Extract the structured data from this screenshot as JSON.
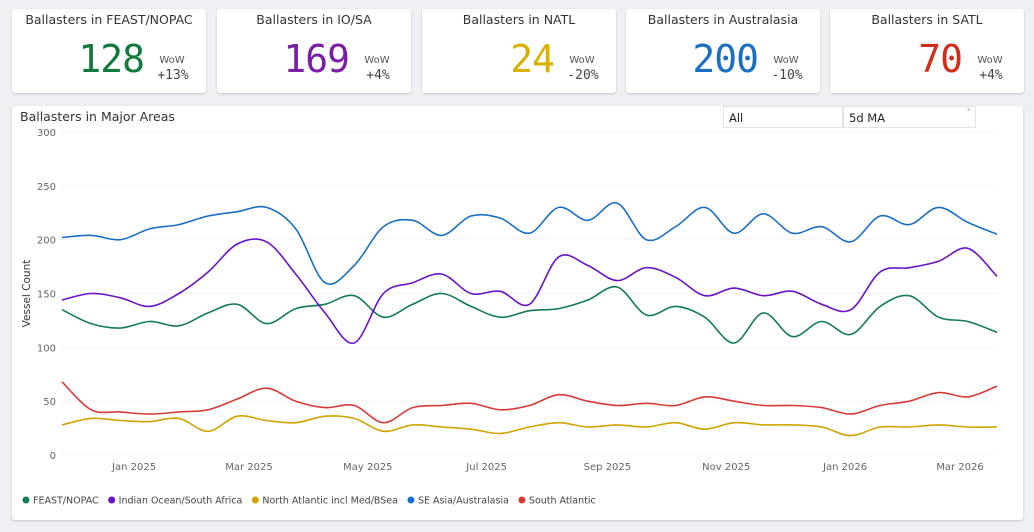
{
  "kpis": [
    {
      "title": "Ballasters in FEAST/NOPAC",
      "value": "128",
      "wow_label": "WoW",
      "delta": "+13%",
      "color": "#137a3e"
    },
    {
      "title": "Ballasters in IO/SA",
      "value": "169",
      "wow_label": "WoW",
      "delta": "+4%",
      "color": "#7a1fa5"
    },
    {
      "title": "Ballasters in NATL",
      "value": "24",
      "wow_label": "WoW",
      "delta": "-20%",
      "color": "#d8b000"
    },
    {
      "title": "Ballasters in Australasia",
      "value": "200",
      "wow_label": "WoW",
      "delta": "-10%",
      "color": "#1a6fc4"
    },
    {
      "title": "Ballasters in SATL",
      "value": "70",
      "wow_label": "WoW",
      "delta": "+4%",
      "color": "#d22d18"
    }
  ],
  "filters": {
    "period": {
      "value": "All"
    },
    "smoothing": {
      "value": "5d MA"
    }
  },
  "chart_data": {
    "type": "line",
    "title": "Ballasters in Major Areas",
    "xlabel": "",
    "ylabel": "Vessel Count",
    "ylim": [
      0,
      300
    ],
    "yticks": [
      0,
      50,
      100,
      150,
      200,
      250,
      300
    ],
    "grid": true,
    "legend_position": "bottom-left",
    "x": [
      "2024-11-25",
      "2024-12-10",
      "2024-12-25",
      "2025-01-09",
      "2025-01-24",
      "2025-02-08",
      "2025-02-23",
      "2025-03-10",
      "2025-03-25",
      "2025-04-09",
      "2025-04-24",
      "2025-05-09",
      "2025-05-24",
      "2025-06-08",
      "2025-06-23",
      "2025-07-08",
      "2025-07-23",
      "2025-08-07",
      "2025-08-22",
      "2025-09-06",
      "2025-09-21",
      "2025-10-06",
      "2025-10-21",
      "2025-11-05",
      "2025-11-20",
      "2025-12-05",
      "2025-12-20",
      "2026-01-04",
      "2026-01-19",
      "2026-02-03",
      "2026-02-18",
      "2026-03-05",
      "2026-03-20"
    ],
    "xticks": [
      {
        "date": "2025-01-01",
        "label": "Jan 2025"
      },
      {
        "date": "2025-03-01",
        "label": "Mar 2025"
      },
      {
        "date": "2025-05-01",
        "label": "May 2025"
      },
      {
        "date": "2025-07-01",
        "label": "Jul 2025"
      },
      {
        "date": "2025-09-01",
        "label": "Sep 2025"
      },
      {
        "date": "2025-11-01",
        "label": "Nov 2025"
      },
      {
        "date": "2026-01-01",
        "label": "Jan 2026"
      },
      {
        "date": "2026-03-01",
        "label": "Mar 2026"
      }
    ],
    "series": [
      {
        "name": "FEAST/NOPAC",
        "color": "#137a5a",
        "values": [
          135,
          122,
          118,
          124,
          120,
          132,
          140,
          122,
          136,
          140,
          148,
          128,
          140,
          150,
          138,
          128,
          134,
          136,
          144,
          156,
          130,
          138,
          128,
          104,
          132,
          110,
          124,
          112,
          138,
          148,
          128,
          124,
          114
        ]
      },
      {
        "name": "Indian Ocean/South Africa",
        "color": "#6a13c9",
        "values": [
          144,
          150,
          146,
          138,
          150,
          170,
          196,
          198,
          168,
          132,
          104,
          150,
          160,
          168,
          150,
          152,
          140,
          184,
          176,
          162,
          174,
          165,
          148,
          155,
          148,
          152,
          140,
          135,
          170,
          174,
          180,
          192,
          166
        ]
      },
      {
        "name": "North Atlantic incl Med/BSea",
        "color": "#d0a400",
        "values": [
          28,
          34,
          32,
          31,
          34,
          22,
          36,
          32,
          30,
          36,
          34,
          22,
          28,
          26,
          24,
          20,
          26,
          30,
          26,
          28,
          26,
          30,
          24,
          30,
          28,
          28,
          26,
          18,
          26,
          26,
          28,
          26,
          26
        ]
      },
      {
        "name": "SE Asia/Australasia",
        "color": "#1a6fc4",
        "values": [
          202,
          204,
          200,
          210,
          214,
          222,
          226,
          230,
          210,
          160,
          176,
          212,
          218,
          204,
          222,
          220,
          206,
          230,
          218,
          234,
          200,
          212,
          230,
          206,
          224,
          206,
          212,
          198,
          222,
          214,
          230,
          216,
          205
        ]
      },
      {
        "name": "South Atlantic",
        "color": "#d73b38",
        "values": [
          68,
          42,
          40,
          38,
          40,
          42,
          52,
          62,
          50,
          44,
          46,
          30,
          44,
          46,
          48,
          42,
          46,
          56,
          50,
          46,
          48,
          46,
          54,
          50,
          46,
          46,
          44,
          38,
          46,
          50,
          58,
          54,
          64
        ]
      }
    ]
  }
}
